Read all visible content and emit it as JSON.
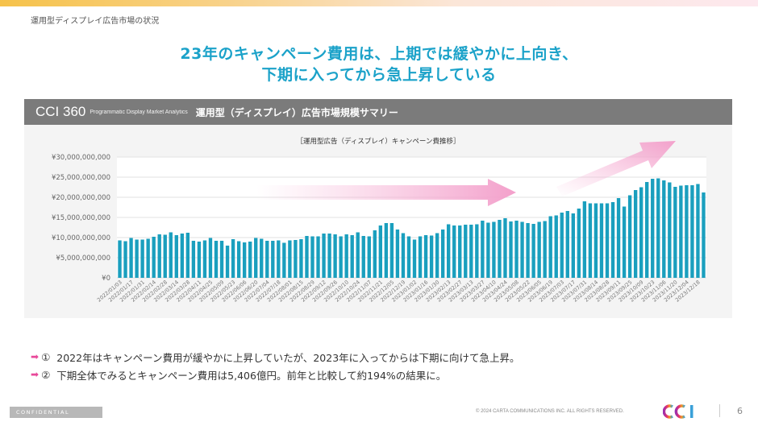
{
  "header": {
    "section_title": "運用型ディスプレイ広告市場の状況",
    "headline_line1": "23年のキャンペーン費用は、上期では緩やかに上向き、",
    "headline_line2": "下期に入ってから急上昇している"
  },
  "panel": {
    "brand": "CCI 360",
    "brand_sub": "Programmatic Display Market Analytics",
    "title": "運用型（ディスプレイ）広告市場規模サマリー"
  },
  "colors": {
    "accent": "#1ba2c9",
    "bar": "#1a9fbe",
    "arrow": "#f3a6cf",
    "bullet_arrow": "#e8499a",
    "header_bg": "#7b7b7b"
  },
  "chart_data": {
    "type": "bar",
    "title": "［運用型広告（ディスプレイ）キャンペーン費推移］",
    "xlabel": "",
    "ylabel": "",
    "ylim": [
      0,
      30000000000
    ],
    "y_ticks": [
      0,
      5000000000,
      10000000000,
      15000000000,
      20000000000,
      25000000000,
      30000000000
    ],
    "y_tick_labels": [
      "¥0",
      "¥5,000,000,000",
      "¥10,000,000,000",
      "¥15,000,000,000",
      "¥20,000,000,000",
      "¥25,000,000,000",
      "¥30,000,000,000"
    ],
    "grid": true,
    "legend": "none",
    "x_tick_labels": [
      "2022/01/03",
      "2022/01/17",
      "2022/01/31",
      "2022/02/14",
      "2022/02/28",
      "2022/03/14",
      "2022/03/28",
      "2022/04/11",
      "2022/04/25",
      "2022/05/09",
      "2022/05/23",
      "2022/06/06",
      "2022/06/20",
      "2022/07/04",
      "2022/07/18",
      "2022/08/01",
      "2022/08/15",
      "2022/08/29",
      "2022/09/12",
      "2022/09/26",
      "2022/10/10",
      "2022/10/24",
      "2022/11/07",
      "2022/11/21",
      "2022/12/05",
      "2022/12/19",
      "2023/01/02",
      "2023/01/16",
      "2023/01/30",
      "2023/02/13",
      "2023/02/27",
      "2023/03/13",
      "2023/03/27",
      "2023/04/10",
      "2023/04/24",
      "2023/05/08",
      "2023/05/22",
      "2023/06/05",
      "2023/06/19",
      "2023/07/03",
      "2023/07/17",
      "2023/07/31",
      "2023/08/14",
      "2023/08/28",
      "2023/09/11",
      "2023/09/25",
      "2023/10/09",
      "2023/10/23",
      "2023/11/06",
      "2023/11/20",
      "2023/12/04",
      "2023/12/18"
    ],
    "series": [
      {
        "name": "キャンペーン費",
        "unit": "JPY_billion",
        "values": [
          9.3,
          9.1,
          9.9,
          9.5,
          9.5,
          9.7,
          10.2,
          10.8,
          10.7,
          11.3,
          10.6,
          11.0,
          11.2,
          9.2,
          9.0,
          9.3,
          9.9,
          9.2,
          9.2,
          8.0,
          9.6,
          9.1,
          8.8,
          9.0,
          9.9,
          9.7,
          9.2,
          9.2,
          9.3,
          8.7,
          9.3,
          9.4,
          9.6,
          10.4,
          10.3,
          10.3,
          11.0,
          11.0,
          10.8,
          10.3,
          10.8,
          10.6,
          11.3,
          10.4,
          10.3,
          11.8,
          13.0,
          13.6,
          13.6,
          12.0,
          11.1,
          10.3,
          9.5,
          10.3,
          10.6,
          10.5,
          11.1,
          12.0,
          13.3,
          13.0,
          13.0,
          13.2,
          13.2,
          13.3,
          14.2,
          13.7,
          13.9,
          14.4,
          14.8,
          14.0,
          14.2,
          13.9,
          13.6,
          13.4,
          13.9,
          14.1,
          15.3,
          15.5,
          16.2,
          16.6,
          16.0,
          17.2,
          19.0,
          18.5,
          18.5,
          18.5,
          18.5,
          18.8,
          19.8,
          17.7,
          20.5,
          21.8,
          22.5,
          23.8,
          24.6,
          24.7,
          24.2,
          23.7,
          22.6,
          22.9,
          23.0,
          23.0,
          23.3,
          21.2
        ]
      }
    ],
    "annotations": [
      {
        "type": "arrow",
        "description": "horizontal pink arrow over 2022–2023 H1 (gradual rise)"
      },
      {
        "type": "arrow",
        "description": "diagonal pink arrow pointing up-right over 2023 H2 (sharp rise)"
      }
    ]
  },
  "bullets": [
    {
      "arrow": "➡",
      "num": "①",
      "text": "2022年はキャンペーン費用が緩やかに上昇していたが、2023年に入ってからは下期に向けて急上昇。"
    },
    {
      "arrow": "➡",
      "num": "②",
      "text": "下期全体でみるとキャンペーン費用は5,406億円。前年と比較して約194%の結果に。"
    }
  ],
  "footer": {
    "confidential": "CONFIDENTIAL",
    "copyright": "© 2024 CARTA COMMUNICATIONS INC.   ALL RIGHTS RESERVED.",
    "logo_text": "CCI",
    "page_number": "6"
  }
}
